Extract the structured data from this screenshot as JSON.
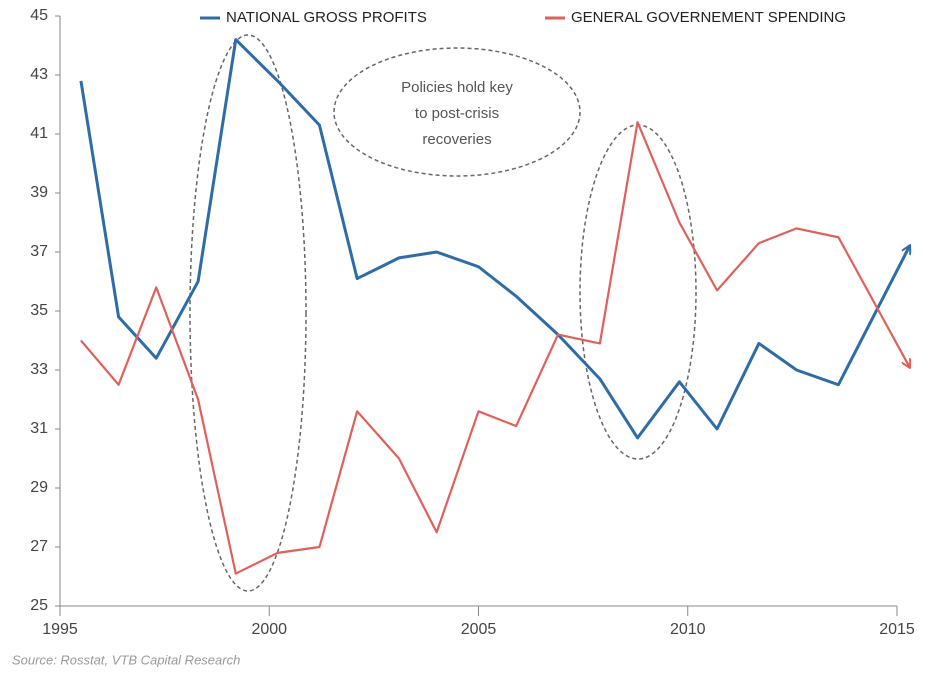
{
  "chart_data": {
    "type": "line",
    "x": [
      1995.5,
      1996.4,
      1997.3,
      1998.3,
      1999.2,
      2000.2,
      2001.2,
      2002.1,
      2003.1,
      2004.0,
      2005.0,
      2005.9,
      2006.9,
      2007.9,
      2008.8,
      2009.8,
      2010.7,
      2011.7,
      2012.6,
      2013.6,
      2015.3
    ],
    "series": [
      {
        "name": "NATIONAL GROSS PROFITS",
        "color": "#2e6ca8",
        "values": [
          42.8,
          34.8,
          33.4,
          36.0,
          44.2,
          42.8,
          41.3,
          36.1,
          36.8,
          37.0,
          36.5,
          35.5,
          34.2,
          32.7,
          30.7,
          32.6,
          31.0,
          33.9,
          33.0,
          32.5,
          37.2
        ]
      },
      {
        "name": "GENERAL GOVERNEMENT SPENDING",
        "color": "#e0605a",
        "values": [
          34.0,
          32.5,
          35.8,
          32.0,
          26.1,
          26.8,
          27.0,
          31.6,
          30.0,
          27.5,
          31.6,
          31.1,
          34.2,
          33.9,
          41.4,
          38.0,
          35.7,
          37.3,
          37.8,
          37.5,
          33.1
        ]
      }
    ],
    "xlim": [
      1995,
      2015
    ],
    "xticks": [
      1995,
      2000,
      2005,
      2010,
      2015
    ],
    "ylim": [
      25,
      45
    ],
    "yticks": [
      25,
      27,
      29,
      31,
      33,
      35,
      37,
      39,
      41,
      43,
      45
    ],
    "annotation": [
      "Policies hold key",
      "to post-crisis",
      "recoveries"
    ],
    "source": "Source: Rosstat, VTB Capital Research"
  }
}
